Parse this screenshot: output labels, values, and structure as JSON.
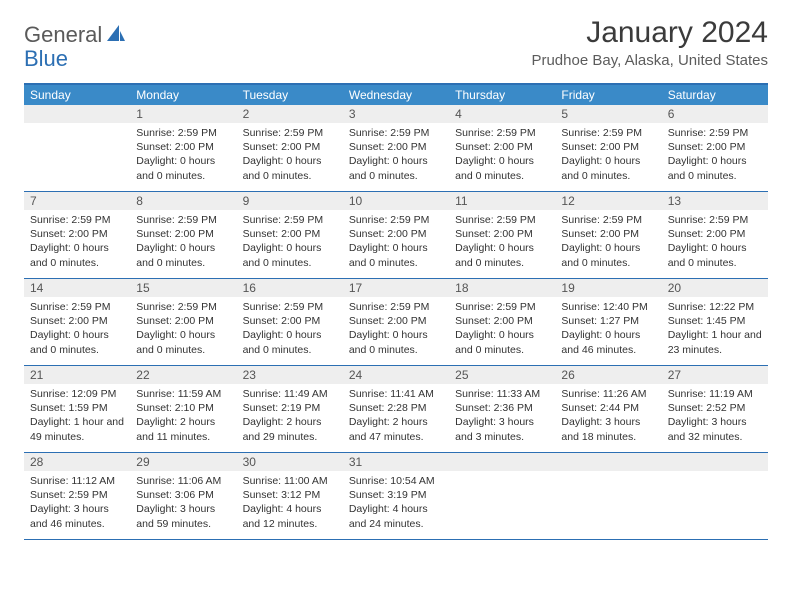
{
  "logo": {
    "text_general": "General",
    "text_blue": "Blue"
  },
  "title": "January 2024",
  "location": "Prudhoe Bay, Alaska, United States",
  "colors": {
    "header_bar": "#3a8ac8",
    "border": "#2c6fb3",
    "daynum_bg": "#eeeeee",
    "text": "#333333",
    "logo_gray": "#5a5a5a",
    "logo_blue": "#2c6fb3"
  },
  "weekdays": [
    "Sunday",
    "Monday",
    "Tuesday",
    "Wednesday",
    "Thursday",
    "Friday",
    "Saturday"
  ],
  "weeks": [
    [
      {
        "n": "",
        "sr": "",
        "ss": "",
        "dl": ""
      },
      {
        "n": "1",
        "sr": "Sunrise: 2:59 PM",
        "ss": "Sunset: 2:00 PM",
        "dl": "Daylight: 0 hours and 0 minutes."
      },
      {
        "n": "2",
        "sr": "Sunrise: 2:59 PM",
        "ss": "Sunset: 2:00 PM",
        "dl": "Daylight: 0 hours and 0 minutes."
      },
      {
        "n": "3",
        "sr": "Sunrise: 2:59 PM",
        "ss": "Sunset: 2:00 PM",
        "dl": "Daylight: 0 hours and 0 minutes."
      },
      {
        "n": "4",
        "sr": "Sunrise: 2:59 PM",
        "ss": "Sunset: 2:00 PM",
        "dl": "Daylight: 0 hours and 0 minutes."
      },
      {
        "n": "5",
        "sr": "Sunrise: 2:59 PM",
        "ss": "Sunset: 2:00 PM",
        "dl": "Daylight: 0 hours and 0 minutes."
      },
      {
        "n": "6",
        "sr": "Sunrise: 2:59 PM",
        "ss": "Sunset: 2:00 PM",
        "dl": "Daylight: 0 hours and 0 minutes."
      }
    ],
    [
      {
        "n": "7",
        "sr": "Sunrise: 2:59 PM",
        "ss": "Sunset: 2:00 PM",
        "dl": "Daylight: 0 hours and 0 minutes."
      },
      {
        "n": "8",
        "sr": "Sunrise: 2:59 PM",
        "ss": "Sunset: 2:00 PM",
        "dl": "Daylight: 0 hours and 0 minutes."
      },
      {
        "n": "9",
        "sr": "Sunrise: 2:59 PM",
        "ss": "Sunset: 2:00 PM",
        "dl": "Daylight: 0 hours and 0 minutes."
      },
      {
        "n": "10",
        "sr": "Sunrise: 2:59 PM",
        "ss": "Sunset: 2:00 PM",
        "dl": "Daylight: 0 hours and 0 minutes."
      },
      {
        "n": "11",
        "sr": "Sunrise: 2:59 PM",
        "ss": "Sunset: 2:00 PM",
        "dl": "Daylight: 0 hours and 0 minutes."
      },
      {
        "n": "12",
        "sr": "Sunrise: 2:59 PM",
        "ss": "Sunset: 2:00 PM",
        "dl": "Daylight: 0 hours and 0 minutes."
      },
      {
        "n": "13",
        "sr": "Sunrise: 2:59 PM",
        "ss": "Sunset: 2:00 PM",
        "dl": "Daylight: 0 hours and 0 minutes."
      }
    ],
    [
      {
        "n": "14",
        "sr": "Sunrise: 2:59 PM",
        "ss": "Sunset: 2:00 PM",
        "dl": "Daylight: 0 hours and 0 minutes."
      },
      {
        "n": "15",
        "sr": "Sunrise: 2:59 PM",
        "ss": "Sunset: 2:00 PM",
        "dl": "Daylight: 0 hours and 0 minutes."
      },
      {
        "n": "16",
        "sr": "Sunrise: 2:59 PM",
        "ss": "Sunset: 2:00 PM",
        "dl": "Daylight: 0 hours and 0 minutes."
      },
      {
        "n": "17",
        "sr": "Sunrise: 2:59 PM",
        "ss": "Sunset: 2:00 PM",
        "dl": "Daylight: 0 hours and 0 minutes."
      },
      {
        "n": "18",
        "sr": "Sunrise: 2:59 PM",
        "ss": "Sunset: 2:00 PM",
        "dl": "Daylight: 0 hours and 0 minutes."
      },
      {
        "n": "19",
        "sr": "Sunrise: 12:40 PM",
        "ss": "Sunset: 1:27 PM",
        "dl": "Daylight: 0 hours and 46 minutes."
      },
      {
        "n": "20",
        "sr": "Sunrise: 12:22 PM",
        "ss": "Sunset: 1:45 PM",
        "dl": "Daylight: 1 hour and 23 minutes."
      }
    ],
    [
      {
        "n": "21",
        "sr": "Sunrise: 12:09 PM",
        "ss": "Sunset: 1:59 PM",
        "dl": "Daylight: 1 hour and 49 minutes."
      },
      {
        "n": "22",
        "sr": "Sunrise: 11:59 AM",
        "ss": "Sunset: 2:10 PM",
        "dl": "Daylight: 2 hours and 11 minutes."
      },
      {
        "n": "23",
        "sr": "Sunrise: 11:49 AM",
        "ss": "Sunset: 2:19 PM",
        "dl": "Daylight: 2 hours and 29 minutes."
      },
      {
        "n": "24",
        "sr": "Sunrise: 11:41 AM",
        "ss": "Sunset: 2:28 PM",
        "dl": "Daylight: 2 hours and 47 minutes."
      },
      {
        "n": "25",
        "sr": "Sunrise: 11:33 AM",
        "ss": "Sunset: 2:36 PM",
        "dl": "Daylight: 3 hours and 3 minutes."
      },
      {
        "n": "26",
        "sr": "Sunrise: 11:26 AM",
        "ss": "Sunset: 2:44 PM",
        "dl": "Daylight: 3 hours and 18 minutes."
      },
      {
        "n": "27",
        "sr": "Sunrise: 11:19 AM",
        "ss": "Sunset: 2:52 PM",
        "dl": "Daylight: 3 hours and 32 minutes."
      }
    ],
    [
      {
        "n": "28",
        "sr": "Sunrise: 11:12 AM",
        "ss": "Sunset: 2:59 PM",
        "dl": "Daylight: 3 hours and 46 minutes."
      },
      {
        "n": "29",
        "sr": "Sunrise: 11:06 AM",
        "ss": "Sunset: 3:06 PM",
        "dl": "Daylight: 3 hours and 59 minutes."
      },
      {
        "n": "30",
        "sr": "Sunrise: 11:00 AM",
        "ss": "Sunset: 3:12 PM",
        "dl": "Daylight: 4 hours and 12 minutes."
      },
      {
        "n": "31",
        "sr": "Sunrise: 10:54 AM",
        "ss": "Sunset: 3:19 PM",
        "dl": "Daylight: 4 hours and 24 minutes."
      },
      {
        "n": "",
        "sr": "",
        "ss": "",
        "dl": ""
      },
      {
        "n": "",
        "sr": "",
        "ss": "",
        "dl": ""
      },
      {
        "n": "",
        "sr": "",
        "ss": "",
        "dl": ""
      }
    ]
  ]
}
